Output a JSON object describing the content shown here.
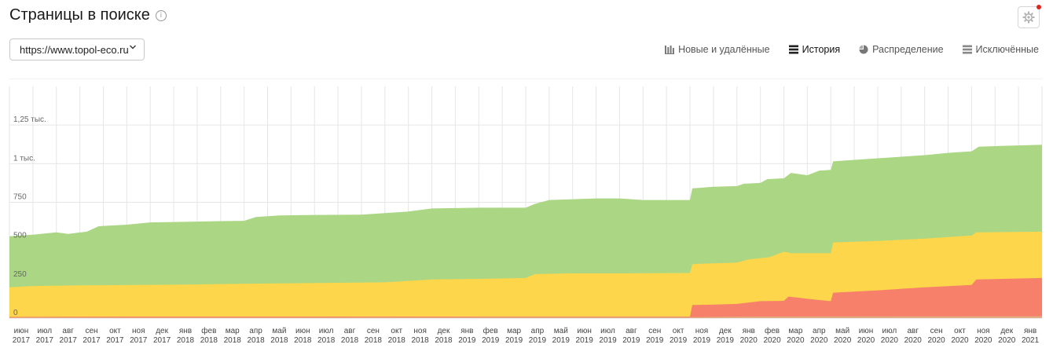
{
  "header": {
    "title": "Страницы в поиске",
    "info_glyph": "i",
    "settings_icon": "gear-icon"
  },
  "site_select": {
    "value": "https://www.topol-eco.ru"
  },
  "tabs": [
    {
      "label": "Новые и удалённые",
      "icon": "bar-chart-icon",
      "active": false
    },
    {
      "label": "История",
      "icon": "layers-icon",
      "active": true
    },
    {
      "label": "Распределение",
      "icon": "pie-chart-icon",
      "active": false
    },
    {
      "label": "Исключённые",
      "icon": "layers-icon",
      "active": false
    }
  ],
  "colors": {
    "green": "#abd683",
    "yellow": "#fdd64b",
    "red": "#f7806a",
    "brown": "#e1ad86",
    "grid": "#e6e6e6"
  },
  "chart_data": {
    "type": "area",
    "stacked": true,
    "title": "",
    "xlabel": "",
    "ylabel": "",
    "ylim": [
      0,
      1500
    ],
    "y_ticks": [
      {
        "value": 0,
        "label": "0"
      },
      {
        "value": 250,
        "label": "250"
      },
      {
        "value": 500,
        "label": "500"
      },
      {
        "value": 750,
        "label": "750"
      },
      {
        "value": 1000,
        "label": "1 тыс."
      },
      {
        "value": 1250,
        "label": "1,25 тыс."
      }
    ],
    "x_ticks": [
      {
        "month": "июн",
        "year": "2017"
      },
      {
        "month": "июл",
        "year": "2017"
      },
      {
        "month": "авг",
        "year": "2017"
      },
      {
        "month": "сен",
        "year": "2017"
      },
      {
        "month": "окт",
        "year": "2017"
      },
      {
        "month": "ноя",
        "year": "2017"
      },
      {
        "month": "дек",
        "year": "2017"
      },
      {
        "month": "янв",
        "year": "2018"
      },
      {
        "month": "фев",
        "year": "2018"
      },
      {
        "month": "мар",
        "year": "2018"
      },
      {
        "month": "апр",
        "year": "2018"
      },
      {
        "month": "май",
        "year": "2018"
      },
      {
        "month": "июн",
        "year": "2018"
      },
      {
        "month": "июл",
        "year": "2018"
      },
      {
        "month": "авг",
        "year": "2018"
      },
      {
        "month": "сен",
        "year": "2018"
      },
      {
        "month": "окт",
        "year": "2018"
      },
      {
        "month": "ноя",
        "year": "2018"
      },
      {
        "month": "дек",
        "year": "2018"
      },
      {
        "month": "янв",
        "year": "2019"
      },
      {
        "month": "фев",
        "year": "2019"
      },
      {
        "month": "мар",
        "year": "2019"
      },
      {
        "month": "апр",
        "year": "2019"
      },
      {
        "month": "май",
        "year": "2019"
      },
      {
        "month": "июн",
        "year": "2019"
      },
      {
        "month": "июл",
        "year": "2019"
      },
      {
        "month": "авг",
        "year": "2019"
      },
      {
        "month": "сен",
        "year": "2019"
      },
      {
        "month": "окт",
        "year": "2019"
      },
      {
        "month": "ноя",
        "year": "2019"
      },
      {
        "month": "дек",
        "year": "2019"
      },
      {
        "month": "янв",
        "year": "2020"
      },
      {
        "month": "фев",
        "year": "2020"
      },
      {
        "month": "мар",
        "year": "2020"
      },
      {
        "month": "апр",
        "year": "2020"
      },
      {
        "month": "май",
        "year": "2020"
      },
      {
        "month": "июн",
        "year": "2020"
      },
      {
        "month": "июл",
        "year": "2020"
      },
      {
        "month": "авг",
        "year": "2020"
      },
      {
        "month": "сен",
        "year": "2020"
      },
      {
        "month": "окт",
        "year": "2020"
      },
      {
        "month": "ноя",
        "year": "2020"
      },
      {
        "month": "дек",
        "year": "2020"
      },
      {
        "month": "янв",
        "year": "2021"
      }
    ],
    "x_range_months": [
      0,
      44
    ],
    "series": [
      {
        "name": "brown",
        "color": "#e1ad86",
        "cumulative": [
          [
            0,
            5
          ],
          [
            10,
            5
          ],
          [
            20,
            6
          ],
          [
            29,
            6
          ],
          [
            31.2,
            10
          ],
          [
            44,
            12
          ]
        ]
      },
      {
        "name": "red",
        "color": "#f7806a",
        "cumulative": [
          [
            0,
            8
          ],
          [
            2,
            9
          ],
          [
            5,
            10
          ],
          [
            10,
            10
          ],
          [
            20,
            10
          ],
          [
            29,
            10
          ],
          [
            29.1,
            85
          ],
          [
            30,
            88
          ],
          [
            31,
            92
          ],
          [
            32,
            110
          ],
          [
            33,
            112
          ],
          [
            33.2,
            140
          ],
          [
            34,
            125
          ],
          [
            35,
            110
          ],
          [
            35.1,
            165
          ],
          [
            37,
            180
          ],
          [
            39,
            200
          ],
          [
            41,
            215
          ],
          [
            41.2,
            250
          ],
          [
            44,
            260
          ]
        ]
      },
      {
        "name": "yellow",
        "color": "#fdd64b",
        "cumulative": [
          [
            0,
            200
          ],
          [
            1,
            208
          ],
          [
            3,
            212
          ],
          [
            5,
            214
          ],
          [
            8,
            218
          ],
          [
            10,
            222
          ],
          [
            12,
            226
          ],
          [
            16,
            232
          ],
          [
            18,
            250
          ],
          [
            20,
            254
          ],
          [
            22,
            260
          ],
          [
            22.4,
            285
          ],
          [
            24,
            290
          ],
          [
            26,
            290
          ],
          [
            28,
            292
          ],
          [
            29,
            292
          ],
          [
            29.1,
            350
          ],
          [
            31,
            360
          ],
          [
            31.5,
            380
          ],
          [
            32.4,
            395
          ],
          [
            33,
            430
          ],
          [
            33.3,
            420
          ],
          [
            35,
            420
          ],
          [
            35.1,
            490
          ],
          [
            37,
            500
          ],
          [
            39,
            515
          ],
          [
            41,
            535
          ],
          [
            41.2,
            555
          ],
          [
            44,
            560
          ]
        ]
      },
      {
        "name": "green",
        "color": "#abd683",
        "cumulative": [
          [
            0,
            530
          ],
          [
            1,
            540
          ],
          [
            2,
            555
          ],
          [
            2.5,
            545
          ],
          [
            3.3,
            560
          ],
          [
            3.8,
            595
          ],
          [
            5,
            605
          ],
          [
            6,
            620
          ],
          [
            8,
            625
          ],
          [
            9,
            628
          ],
          [
            10,
            630
          ],
          [
            10.5,
            655
          ],
          [
            11.5,
            665
          ],
          [
            13,
            668
          ],
          [
            15,
            670
          ],
          [
            16,
            680
          ],
          [
            17,
            690
          ],
          [
            18,
            710
          ],
          [
            20,
            715
          ],
          [
            22,
            715
          ],
          [
            22.4,
            740
          ],
          [
            23,
            765
          ],
          [
            25,
            775
          ],
          [
            26,
            775
          ],
          [
            27,
            765
          ],
          [
            29,
            765
          ],
          [
            29.1,
            840
          ],
          [
            30,
            850
          ],
          [
            31,
            855
          ],
          [
            31.3,
            870
          ],
          [
            32,
            875
          ],
          [
            32.3,
            900
          ],
          [
            33,
            905
          ],
          [
            33.3,
            940
          ],
          [
            34,
            925
          ],
          [
            34.5,
            955
          ],
          [
            35,
            960
          ],
          [
            35.1,
            1015
          ],
          [
            37,
            1035
          ],
          [
            39,
            1055
          ],
          [
            40,
            1070
          ],
          [
            41,
            1080
          ],
          [
            41.3,
            1110
          ],
          [
            43,
            1118
          ],
          [
            44,
            1122
          ]
        ]
      }
    ]
  }
}
